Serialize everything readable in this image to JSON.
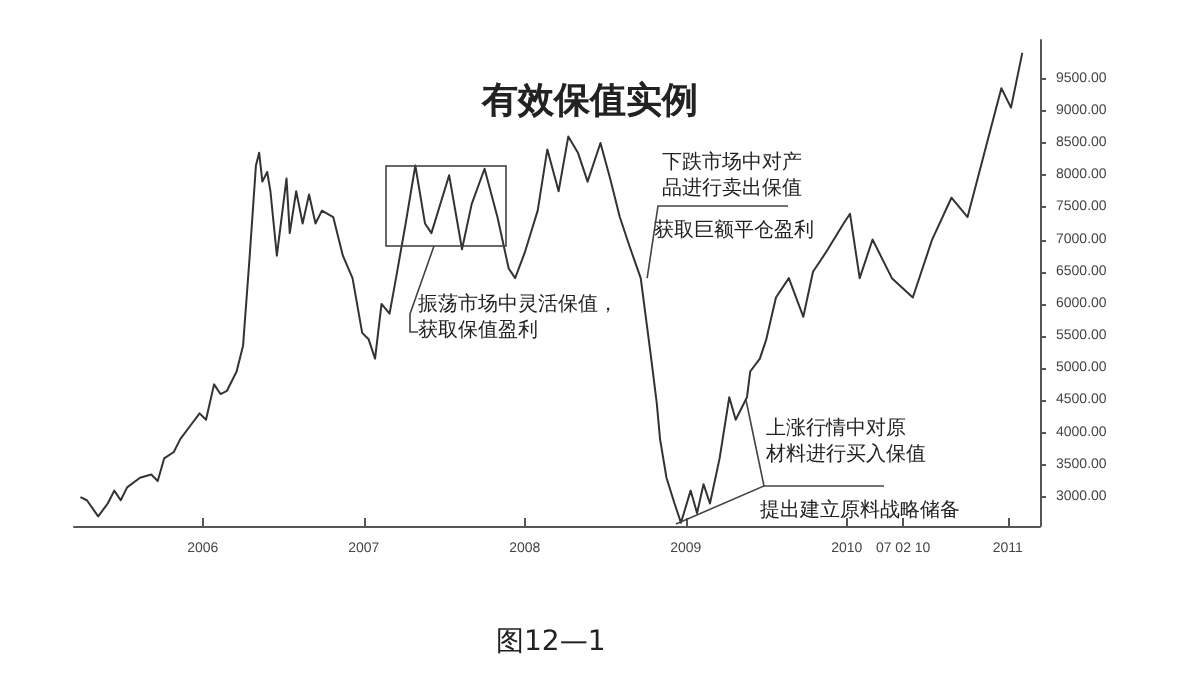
{
  "chart_data": {
    "type": "line",
    "title": "有效保值实例",
    "x": [
      2005.24,
      2005.28,
      2005.35,
      2005.41,
      2005.45,
      2005.49,
      2005.53,
      2005.61,
      2005.68,
      2005.72,
      2005.76,
      2005.82,
      2005.86,
      2005.92,
      2005.98,
      2006.02,
      2006.07,
      2006.11,
      2006.15,
      2006.21,
      2006.25,
      2006.29,
      2006.33,
      2006.35,
      2006.37,
      2006.4,
      2006.42,
      2006.46,
      2006.52,
      2006.54,
      2006.58,
      2006.62,
      2006.66,
      2006.7,
      2006.74,
      2006.81,
      2006.87,
      2006.93,
      2006.99,
      2007.03,
      2007.07,
      2007.11,
      2007.16,
      2007.2,
      2007.26,
      2007.32,
      2007.38,
      2007.42,
      2007.53,
      2007.61,
      2007.67,
      2007.75,
      2007.83,
      2007.9,
      2007.94,
      2008.0,
      2008.08,
      2008.14,
      2008.21,
      2008.27,
      2008.33,
      2008.39,
      2008.47,
      2008.53,
      2008.59,
      2008.65,
      2008.72,
      2008.78,
      2008.82,
      2008.84,
      2008.88,
      2008.93,
      2008.97,
      2009.03,
      2009.07,
      2009.11,
      2009.15,
      2009.21,
      2009.27,
      2009.31,
      2009.38,
      2009.4,
      2009.46,
      2009.5,
      2009.56,
      2009.64,
      2009.73,
      2009.79,
      2009.87,
      2009.98,
      2010.02,
      2010.08,
      2010.16,
      2010.28,
      2010.41,
      2010.53,
      2010.65,
      2010.75,
      2010.86,
      2010.96,
      2011.02,
      2011.09
    ],
    "values": [
      3000,
      2950,
      2700,
      2900,
      3100,
      2950,
      3150,
      3300,
      3350,
      3250,
      3600,
      3700,
      3900,
      4100,
      4300,
      4200,
      4750,
      4600,
      4650,
      4950,
      5350,
      6700,
      8150,
      8350,
      7900,
      8050,
      7750,
      6750,
      7950,
      7100,
      7750,
      7250,
      7700,
      7250,
      7450,
      7350,
      6750,
      6400,
      5550,
      5450,
      5150,
      6000,
      5850,
      6400,
      7250,
      8150,
      7250,
      7100,
      8000,
      6850,
      7550,
      8100,
      7350,
      6550,
      6400,
      6800,
      7450,
      8400,
      7750,
      8600,
      8350,
      7900,
      8500,
      7950,
      7350,
      6900,
      6400,
      5250,
      4450,
      3900,
      3300,
      2900,
      2600,
      3100,
      2750,
      3200,
      2900,
      3600,
      4550,
      4200,
      4550,
      4950,
      5150,
      5450,
      6100,
      6400,
      5800,
      6500,
      6800,
      7250,
      7400,
      6400,
      7000,
      6400,
      6100,
      7000,
      7650,
      7350,
      8400,
      9350,
      9050,
      9900
    ],
    "color": "#333333",
    "marker": "none",
    "grid": false,
    "xlim": [
      2005.2,
      2011.2
    ],
    "xticks": [
      2006,
      2007,
      2008,
      2009,
      2010,
      {
        "value": 2010.35,
        "label": "07 02 10"
      },
      2011
    ],
    "ylim": [
      2550,
      10100
    ],
    "yticks": [
      {
        "value": 3000,
        "label": "3000.00"
      },
      {
        "value": 3500,
        "label": "3500.00"
      },
      {
        "value": 4000,
        "label": "4000.00"
      },
      {
        "value": 4500,
        "label": "4500.00"
      },
      {
        "value": 5000,
        "label": "5000.00"
      },
      {
        "value": 5500,
        "label": "5500.00"
      },
      {
        "value": 6000,
        "label": "6000.00"
      },
      {
        "value": 6500,
        "label": "6500.00"
      },
      {
        "value": 7000,
        "label": "7000.00"
      },
      {
        "value": 7500,
        "label": "7500.00"
      },
      {
        "value": 8000,
        "label": "8000.00"
      },
      {
        "value": 8500,
        "label": "8500.00"
      },
      {
        "value": 9000,
        "label": "9000.00"
      },
      {
        "value": 9500,
        "label": "9500.00"
      }
    ],
    "annotations": [
      "振荡市场中灵活保值，获取保值盈利",
      {
        "text": "下跌市场中对产品进行卖出保值",
        "x": 2008.76,
        "y": 6400
      },
      "获取巨额平仓盈利",
      "上涨行情中对原材料进行买入保值",
      "提出建立原料战略储备",
      "图12—1"
    ]
  }
}
